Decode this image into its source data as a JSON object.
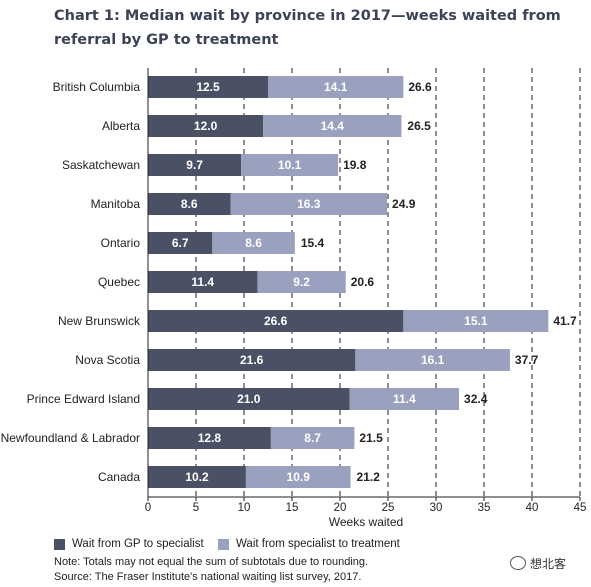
{
  "title": "Chart 1: Median wait by province in 2017—weeks waited from referral by GP to treatment",
  "chart_data": {
    "type": "bar",
    "orientation": "horizontal",
    "stacked": true,
    "categories": [
      "British Columbia",
      "Alberta",
      "Saskatchewan",
      "Manitoba",
      "Ontario",
      "Quebec",
      "New Brunswick",
      "Nova Scotia",
      "Prince Edward Island",
      "Newfoundland & Labrador",
      "Canada"
    ],
    "series": [
      {
        "name": "Wait from GP to specialist",
        "color": "#4a5164",
        "values": [
          12.5,
          12.0,
          9.7,
          8.6,
          6.7,
          11.4,
          26.6,
          21.6,
          21.0,
          12.8,
          10.2
        ]
      },
      {
        "name": "Wait from specialist to treatment",
        "color": "#9aa1bf",
        "values": [
          14.1,
          14.4,
          10.1,
          16.3,
          8.6,
          9.2,
          15.1,
          16.1,
          11.4,
          8.7,
          10.9
        ]
      }
    ],
    "totals": [
      26.6,
      26.5,
      19.8,
      24.9,
      15.4,
      20.6,
      41.7,
      37.7,
      32.4,
      21.5,
      21.2
    ],
    "value_labels": {
      "series": [
        [
          "12.5",
          "12.0",
          "9.7",
          "8.6",
          "6.7",
          "11.4",
          "26.6",
          "21.6",
          "21.0",
          "12.8",
          "10.2"
        ],
        [
          "14.1",
          "14.4",
          "10.1",
          "16.3",
          "8.6",
          "9.2",
          "15.1",
          "16.1",
          "11.4",
          "8.7",
          "10.9"
        ]
      ],
      "totals": [
        "26.6",
        "26.5",
        "19.8",
        "24.9",
        "15.4",
        "20.6",
        "41.7",
        "37.7",
        "32.4",
        "21.5",
        "21.2"
      ]
    },
    "xlabel": "Weeks waited",
    "ylabel": "",
    "xlim": [
      0,
      45
    ],
    "xticks": [
      0,
      5,
      10,
      15,
      20,
      25,
      30,
      35,
      40,
      45
    ],
    "grid": "vertical dashed",
    "legend_position": "bottom-left"
  },
  "legend": {
    "gp_label": "Wait from GP to specialist",
    "specialist_label": "Wait from specialist to treatment"
  },
  "notes": {
    "note": "Note: Totals may not equal the sum of subtotals due to rounding.",
    "source": "Source: The Fraser Institute's national waiting list survey, 2017."
  },
  "watermark": {
    "text": "想北客"
  }
}
